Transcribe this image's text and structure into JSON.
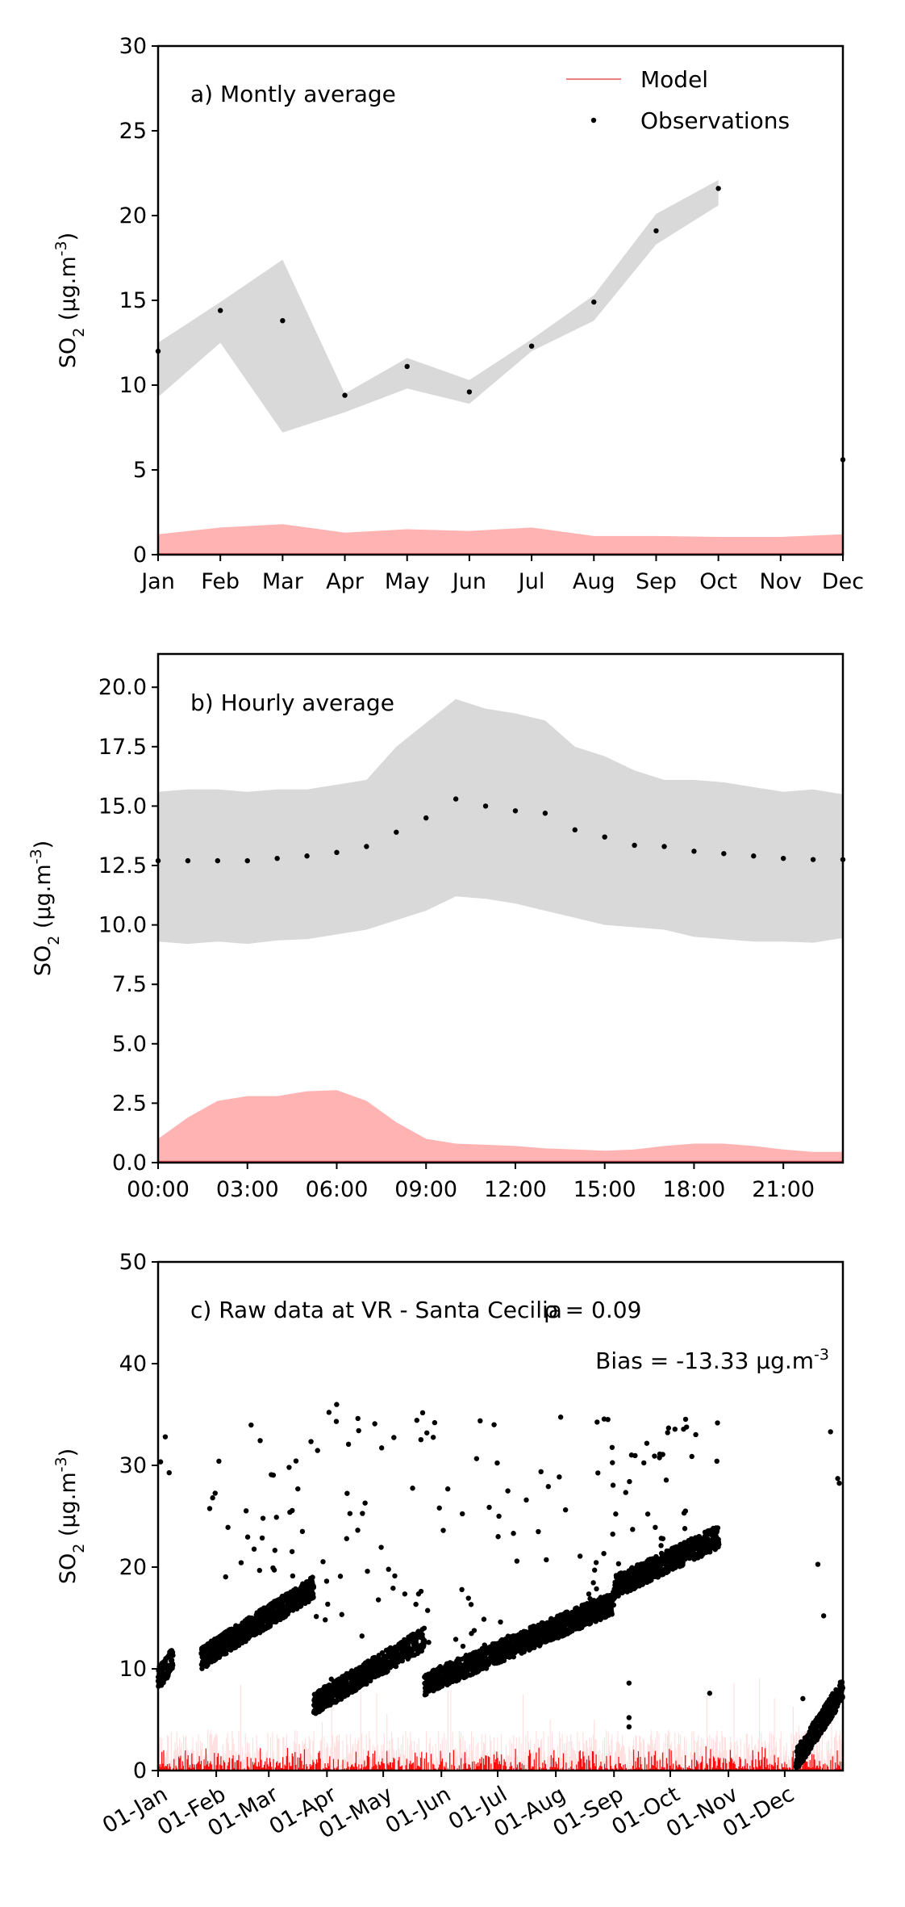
{
  "chart_data": [
    {
      "type": "line",
      "annotation": "a) Montly average",
      "ylabel": "SO_2 (µg.m^-3)",
      "ylim": [
        0,
        30
      ],
      "yticks": [
        0,
        5,
        10,
        15,
        20,
        25,
        30
      ],
      "ytick_labels": [
        "0",
        "5",
        "10",
        "15",
        "20",
        "25",
        "30"
      ],
      "categories": [
        "Jan",
        "Feb",
        "Mar",
        "Apr",
        "May",
        "Jun",
        "Jul",
        "Aug",
        "Sep",
        "Oct",
        "Nov",
        "Dec"
      ],
      "legend": {
        "placement": "top-right",
        "entries": [
          {
            "label": "Model",
            "kind": "line",
            "color": "#f08080"
          },
          {
            "label": "Observations",
            "kind": "marker",
            "color": "#000000"
          }
        ]
      },
      "series": [
        {
          "name": "Observations",
          "kind": "points",
          "values": [
            12.0,
            14.4,
            13.8,
            9.4,
            11.1,
            9.6,
            12.3,
            14.9,
            19.1,
            21.6,
            null,
            5.6
          ]
        },
        {
          "name": "Observations band",
          "kind": "band",
          "lower": [
            9.3,
            12.5,
            7.2,
            8.4,
            9.8,
            8.9,
            12.0,
            13.8,
            18.3,
            20.6,
            null,
            null
          ],
          "upper": [
            12.5,
            14.9,
            17.4,
            9.5,
            11.6,
            10.3,
            12.7,
            15.3,
            20.1,
            22.1,
            null,
            null
          ],
          "color": "#d9d9d9"
        },
        {
          "name": "Model",
          "kind": "band",
          "lower": [
            0.05,
            0.05,
            0.05,
            0.05,
            0.05,
            0.05,
            0.05,
            0.05,
            0.05,
            0.05,
            0.05,
            0.05
          ],
          "upper": [
            1.2,
            1.6,
            1.8,
            1.3,
            1.5,
            1.4,
            1.6,
            1.1,
            1.1,
            1.05,
            1.05,
            1.2
          ],
          "color": "#ffb3b3"
        }
      ]
    },
    {
      "type": "line",
      "annotation": "b) Hourly average",
      "ylabel": "SO_2 (µg.m^-3)",
      "ylim": [
        0,
        21.4
      ],
      "yticks": [
        0,
        2.5,
        5,
        7.5,
        10,
        12.5,
        15,
        17.5,
        20
      ],
      "ytick_labels": [
        "0.0",
        "2.5",
        "5.0",
        "7.5",
        "10.0",
        "12.5",
        "15.0",
        "17.5",
        "20.0"
      ],
      "x": [
        0,
        1,
        2,
        3,
        4,
        5,
        6,
        7,
        8,
        9,
        10,
        11,
        12,
        13,
        14,
        15,
        16,
        17,
        18,
        19,
        20,
        21,
        22,
        23
      ],
      "xlim": [
        0,
        23
      ],
      "xticks": [
        0,
        3,
        6,
        9,
        12,
        15,
        18,
        21
      ],
      "xtick_labels": [
        "00:00",
        "03:00",
        "06:00",
        "09:00",
        "12:00",
        "15:00",
        "18:00",
        "21:00"
      ],
      "series": [
        {
          "name": "Observations",
          "kind": "points",
          "values": [
            12.7,
            12.7,
            12.7,
            12.7,
            12.8,
            12.9,
            13.05,
            13.3,
            13.9,
            14.5,
            15.3,
            15.0,
            14.8,
            14.7,
            14.0,
            13.7,
            13.35,
            13.3,
            13.1,
            13.0,
            12.9,
            12.8,
            12.75,
            12.75
          ]
        },
        {
          "name": "Observations band",
          "kind": "band",
          "lower": [
            9.3,
            9.2,
            9.3,
            9.2,
            9.35,
            9.4,
            9.6,
            9.8,
            10.2,
            10.6,
            11.2,
            11.1,
            10.9,
            10.6,
            10.3,
            10.0,
            9.9,
            9.8,
            9.5,
            9.4,
            9.3,
            9.3,
            9.25,
            9.45
          ],
          "upper": [
            15.6,
            15.7,
            15.7,
            15.6,
            15.7,
            15.7,
            15.9,
            16.1,
            17.5,
            18.5,
            19.5,
            19.1,
            18.9,
            18.6,
            17.5,
            17.1,
            16.5,
            16.1,
            16.1,
            16.0,
            15.8,
            15.6,
            15.7,
            15.5
          ],
          "color": "#d9d9d9"
        },
        {
          "name": "Model",
          "kind": "band",
          "lower": [
            0.05,
            0.05,
            0.05,
            0.05,
            0.05,
            0.05,
            0.05,
            0.05,
            0.05,
            0.05,
            0.05,
            0.05,
            0.05,
            0.05,
            0.05,
            0.05,
            0.05,
            0.05,
            0.05,
            0.05,
            0.05,
            0.05,
            0.05,
            0.05
          ],
          "upper": [
            1.0,
            1.9,
            2.6,
            2.8,
            2.8,
            3.0,
            3.05,
            2.6,
            1.7,
            1.0,
            0.8,
            0.75,
            0.7,
            0.6,
            0.55,
            0.5,
            0.55,
            0.7,
            0.8,
            0.8,
            0.7,
            0.55,
            0.45,
            0.45
          ],
          "color": "#ffb3b3"
        }
      ]
    },
    {
      "type": "scatter",
      "annotation": "c) Raw data at VR - Santa Cecilia",
      "stat_rho": "ρ = 0.09",
      "stat_bias": "Bias = -13.33 µg.m^-3",
      "ylabel": "SO_2 (µg.m^-3)",
      "ylim": [
        0,
        50
      ],
      "yticks": [
        0,
        10,
        20,
        30,
        40,
        50
      ],
      "ytick_labels": [
        "0",
        "10",
        "20",
        "30",
        "40",
        "50"
      ],
      "x_unit": "day of year",
      "xlim": [
        1,
        366
      ],
      "xticks": [
        1,
        32,
        60,
        91,
        121,
        152,
        182,
        213,
        244,
        274,
        305,
        335
      ],
      "xtick_labels": [
        "01-Jan",
        "01-Feb",
        "01-Mar",
        "01-Apr",
        "01-May",
        "01-Jun",
        "01-Jul",
        "01-Aug",
        "01-Sep",
        "01-Oct",
        "01-Nov",
        "01-Dec"
      ],
      "observation_segments": [
        {
          "from_day": 1,
          "to_day": 9,
          "level_start": 9.0,
          "level_end": 11.0,
          "spike_max": 35.0
        },
        {
          "from_day": 24,
          "to_day": 84,
          "level_start": 11.0,
          "level_end": 18.0,
          "spike_max": 35.0
        },
        {
          "from_day": 84,
          "to_day": 143,
          "level_start": 6.5,
          "level_end": 13.0,
          "spike_max": 36.0
        },
        {
          "from_day": 143,
          "to_day": 244,
          "level_start": 8.5,
          "level_end": 16.5,
          "spike_max": 35.0
        },
        {
          "from_day": 244,
          "to_day": 300,
          "level_start": 18.0,
          "level_end": 23.0,
          "spike_max": 35.0
        },
        {
          "from_day": 341,
          "to_day": 366,
          "level_start": 1.0,
          "level_end": 8.0,
          "spike_max": 33.5
        }
      ],
      "observation_outliers": [
        {
          "x": 295,
          "y": 7.6
        },
        {
          "x": 252,
          "y": 4.3
        },
        {
          "x": 252,
          "y": 5.2
        },
        {
          "x": 252,
          "y": 8.6
        }
      ],
      "model": {
        "kind": "dense-line",
        "typical_max": 10.0,
        "peak": 2.5,
        "color": "#ff0000"
      }
    }
  ]
}
